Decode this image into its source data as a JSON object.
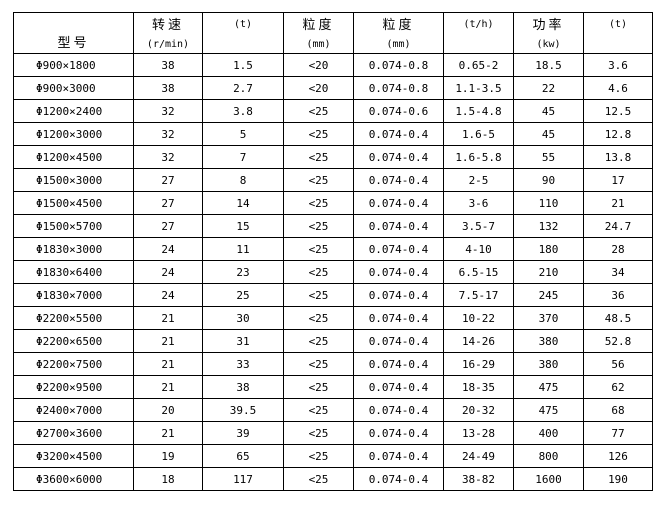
{
  "header": {
    "model": "型号",
    "speed": "转速",
    "speed_unit": "(r/min)",
    "load_unit": "(t)",
    "feed_size": "粒度",
    "feed_unit": "(mm)",
    "out_size": "粒度",
    "out_unit": "(mm)",
    "capacity_unit": "(t/h)",
    "power": "功率",
    "power_unit": "(kw)",
    "weight_unit": "(t)"
  },
  "rows": [
    [
      "Φ900×1800",
      "38",
      "1.5",
      "<20",
      "0.074-0.8",
      "0.65-2",
      "18.5",
      "3.6"
    ],
    [
      "Φ900×3000",
      "38",
      "2.7",
      "<20",
      "0.074-0.8",
      "1.1-3.5",
      "22",
      "4.6"
    ],
    [
      "Φ1200×2400",
      "32",
      "3.8",
      "<25",
      "0.074-0.6",
      "1.5-4.8",
      "45",
      "12.5"
    ],
    [
      "Φ1200×3000",
      "32",
      "5",
      "<25",
      "0.074-0.4",
      "1.6-5",
      "45",
      "12.8"
    ],
    [
      "Φ1200×4500",
      "32",
      "7",
      "<25",
      "0.074-0.4",
      "1.6-5.8",
      "55",
      "13.8"
    ],
    [
      "Φ1500×3000",
      "27",
      "8",
      "<25",
      "0.074-0.4",
      "2-5",
      "90",
      "17"
    ],
    [
      "Φ1500×4500",
      "27",
      "14",
      "<25",
      "0.074-0.4",
      "3-6",
      "110",
      "21"
    ],
    [
      "Φ1500×5700",
      "27",
      "15",
      "<25",
      "0.074-0.4",
      "3.5-7",
      "132",
      "24.7"
    ],
    [
      "Φ1830×3000",
      "24",
      "11",
      "<25",
      "0.074-0.4",
      "4-10",
      "180",
      "28"
    ],
    [
      "Φ1830×6400",
      "24",
      "23",
      "<25",
      "0.074-0.4",
      "6.5-15",
      "210",
      "34"
    ],
    [
      "Φ1830×7000",
      "24",
      "25",
      "<25",
      "0.074-0.4",
      "7.5-17",
      "245",
      "36"
    ],
    [
      "Φ2200×5500",
      "21",
      "30",
      "<25",
      "0.074-0.4",
      "10-22",
      "370",
      "48.5"
    ],
    [
      "Φ2200×6500",
      "21",
      "31",
      "<25",
      "0.074-0.4",
      "14-26",
      "380",
      "52.8"
    ],
    [
      "Φ2200×7500",
      "21",
      "33",
      "<25",
      "0.074-0.4",
      "16-29",
      "380",
      "56"
    ],
    [
      "Φ2200×9500",
      "21",
      "38",
      "<25",
      "0.074-0.4",
      "18-35",
      "475",
      "62"
    ],
    [
      "Φ2400×7000",
      "20",
      "39.5",
      "<25",
      "0.074-0.4",
      "20-32",
      "475",
      "68"
    ],
    [
      "Φ2700×3600",
      "21",
      "39",
      "<25",
      "0.074-0.4",
      "13-28",
      "400",
      "77"
    ],
    [
      "Φ3200×4500",
      "19",
      "65",
      "<25",
      "0.074-0.4",
      "24-49",
      "800",
      "126"
    ],
    [
      "Φ3600×6000",
      "18",
      "117",
      "<25",
      "0.074-0.4",
      "38-82",
      "1600",
      "190"
    ]
  ]
}
